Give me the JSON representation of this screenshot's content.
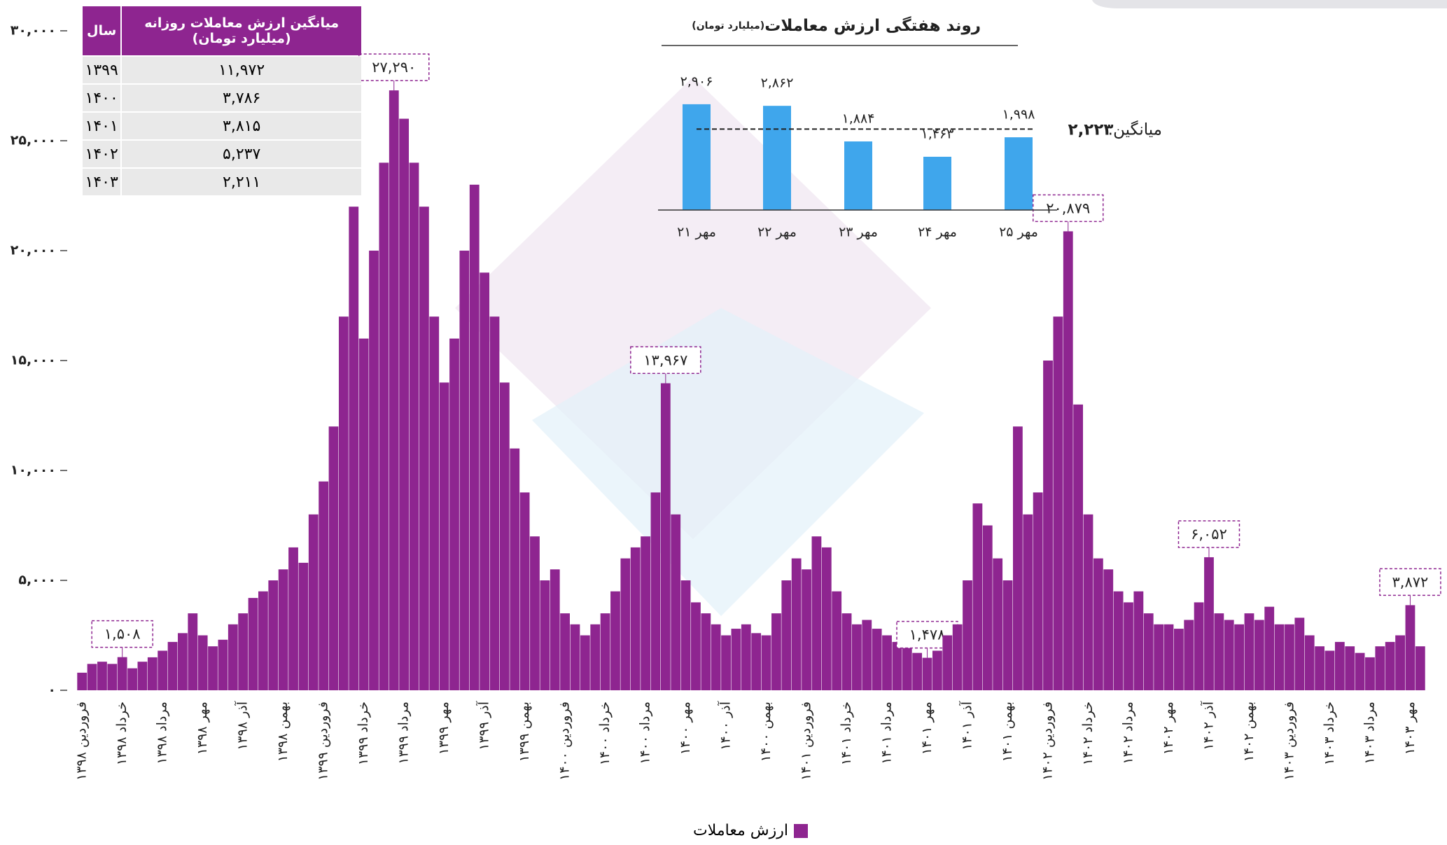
{
  "chart_data": [
    {
      "type": "bar",
      "categories": [
        "فروردین ۱۳۹۸",
        null,
        null,
        null,
        "خرداد ۱۳۹۸",
        null,
        null,
        null,
        "مرداد ۱۳۹۸",
        null,
        null,
        null,
        "مهر ۱۳۹۸",
        null,
        null,
        null,
        "آذر ۱۳۹۸",
        null,
        null,
        null,
        "بهمن ۱۳۹۸",
        null,
        null,
        null,
        "فروردین ۱۳۹۹",
        null,
        null,
        null,
        "خرداد ۱۳۹۹",
        null,
        null,
        null,
        "مرداد ۱۳۹۹",
        null,
        null,
        null,
        "مهر ۱۳۹۹",
        null,
        null,
        null,
        "آذر ۱۳۹۹",
        null,
        null,
        null,
        "بهمن ۱۳۹۹",
        null,
        null,
        null,
        "فروردین ۱۴۰۰",
        null,
        null,
        null,
        "خرداد ۱۴۰۰",
        null,
        null,
        null,
        "مرداد ۱۴۰۰",
        null,
        null,
        null,
        "مهر ۱۴۰۰",
        null,
        null,
        null,
        "آذر ۱۴۰۰",
        null,
        null,
        null,
        "بهمن ۱۴۰۰",
        null,
        null,
        null,
        "فروردین ۱۴۰۱",
        null,
        null,
        null,
        "خرداد ۱۴۰۱",
        null,
        null,
        null,
        "مرداد ۱۴۰۱",
        null,
        null,
        null,
        "مهر ۱۴۰۱",
        null,
        null,
        null,
        "آذر ۱۴۰۱",
        null,
        null,
        null,
        "بهمن ۱۴۰۱",
        null,
        null,
        null,
        "فروردین ۱۴۰۲",
        null,
        null,
        null,
        "خرداد ۱۴۰۲",
        null,
        null,
        null,
        "مرداد ۱۴۰۲",
        null,
        null,
        null,
        "مهر ۱۴۰۲",
        null,
        null,
        null,
        "آذر ۱۴۰۲",
        null,
        null,
        null,
        "بهمن ۱۴۰۲",
        null,
        null,
        null,
        "فروردین ۱۴۰۳",
        null,
        null,
        null,
        "خرداد ۱۴۰۳",
        null,
        null,
        null,
        "مرداد ۱۴۰۳",
        null,
        null,
        null,
        "مهر ۱۴۰۳",
        null
      ],
      "series": [
        {
          "name": "ارزش معاملات",
          "color": "#8e2590",
          "values": [
            800,
            1200,
            1300,
            1200,
            1508,
            1000,
            1300,
            1500,
            1800,
            2200,
            2600,
            3500,
            2500,
            2000,
            2300,
            3000,
            3500,
            4200,
            4500,
            5000,
            5500,
            6500,
            5800,
            8000,
            9500,
            12000,
            17000,
            22000,
            16000,
            20000,
            24000,
            27290,
            26000,
            24000,
            22000,
            17000,
            14000,
            16000,
            20000,
            23000,
            19000,
            17000,
            14000,
            11000,
            9000,
            7000,
            5000,
            5500,
            3500,
            3000,
            2500,
            3000,
            3500,
            4500,
            6000,
            6500,
            7000,
            9000,
            13967,
            8000,
            5000,
            4000,
            3500,
            3000,
            2500,
            2800,
            3000,
            2600,
            2500,
            3500,
            5000,
            6000,
            5500,
            7000,
            6500,
            4500,
            3500,
            3000,
            3200,
            2800,
            2500,
            2200,
            2000,
            1700,
            1478,
            1800,
            2500,
            3000,
            5000,
            8500,
            7500,
            6000,
            5000,
            12000,
            8000,
            9000,
            15000,
            17000,
            20879,
            13000,
            8000,
            6000,
            5500,
            4500,
            4000,
            4500,
            3500,
            3000,
            3000,
            2800,
            3200,
            4000,
            6052,
            3500,
            3200,
            3000,
            3500,
            3200,
            3800,
            3000,
            3000,
            3300,
            2500,
            2000,
            1800,
            2200,
            2000,
            1700,
            1500,
            2000,
            2200,
            2500,
            3872,
            2000
          ],
          "value_labels": [
            null,
            null,
            null,
            null,
            "۱,۵۰۸",
            null,
            null,
            null,
            null,
            null,
            null,
            null,
            null,
            null,
            null,
            null,
            null,
            null,
            null,
            null,
            null,
            null,
            null,
            null,
            null,
            null,
            null,
            null,
            null,
            null,
            null,
            "۲۷,۲۹۰",
            null,
            null,
            null,
            null,
            null,
            null,
            null,
            null,
            null,
            null,
            null,
            null,
            null,
            null,
            null,
            null,
            null,
            null,
            null,
            null,
            null,
            null,
            null,
            null,
            null,
            null,
            "۱۳,۹۶۷",
            null,
            null,
            null,
            null,
            null,
            null,
            null,
            null,
            null,
            null,
            null,
            null,
            null,
            null,
            null,
            null,
            null,
            null,
            null,
            null,
            null,
            null,
            null,
            null,
            null,
            "۱,۴۷۸",
            null,
            null,
            null,
            null,
            null,
            null,
            null,
            null,
            null,
            null,
            null,
            null,
            null,
            "۲۰,۸۷۹",
            null,
            null,
            null,
            null,
            null,
            null,
            null,
            null,
            null,
            null,
            null,
            null,
            null,
            "۶,۰۵۲",
            null,
            null,
            null,
            null,
            null,
            null,
            null,
            null,
            null,
            null,
            null,
            null,
            null,
            null,
            null,
            null,
            null,
            null,
            null,
            "۳,۸۷۲",
            null
          ]
        }
      ],
      "ylim": [
        0,
        30000
      ],
      "yticks": [
        {
          "value": 0,
          "label": "۰"
        },
        {
          "value": 5000,
          "label": "۵,۰۰۰"
        },
        {
          "value": 10000,
          "label": "۱۰,۰۰۰"
        },
        {
          "value": 15000,
          "label": "۱۵,۰۰۰"
        },
        {
          "value": 20000,
          "label": "۲۰,۰۰۰"
        },
        {
          "value": 25000,
          "label": "۲۵,۰۰۰"
        },
        {
          "value": 30000,
          "label": "۳۰,۰۰۰"
        }
      ],
      "legend": "bottom"
    },
    {
      "type": "bar",
      "title": "روند هفتگی ارزش معاملات",
      "subtitle": "(میلیارد تومان)",
      "categories": [
        "۲۱ مهر",
        "۲۲ مهر",
        "۲۳ مهر",
        "۲۴ مهر",
        "۲۵ مهر"
      ],
      "values": [
        2906,
        2862,
        1884,
        1463,
        1998
      ],
      "value_labels": [
        "۲,۹۰۶",
        "۲,۸۶۲",
        "۱,۸۸۴",
        "۱,۴۶۳",
        "۱,۹۹۸"
      ],
      "color": "#3fa6ec",
      "ylim": [
        0,
        3500
      ],
      "average": 2223,
      "average_title": "میانگین:",
      "average_label": "۲,۲۲۳"
    }
  ],
  "table": {
    "headers": [
      "میانگین ارزش معاملات روزانه (میلیارد تومان)",
      "سال"
    ],
    "rows": [
      [
        "۱۱,۹۷۲",
        "۱۳۹۹"
      ],
      [
        "۳,۷۸۶",
        "۱۴۰۰"
      ],
      [
        "۳,۸۱۵",
        "۱۴۰۱"
      ],
      [
        "۵,۲۳۷",
        "۱۴۰۲"
      ],
      [
        "۲,۲۱۱",
        "۱۴۰۳"
      ]
    ]
  }
}
